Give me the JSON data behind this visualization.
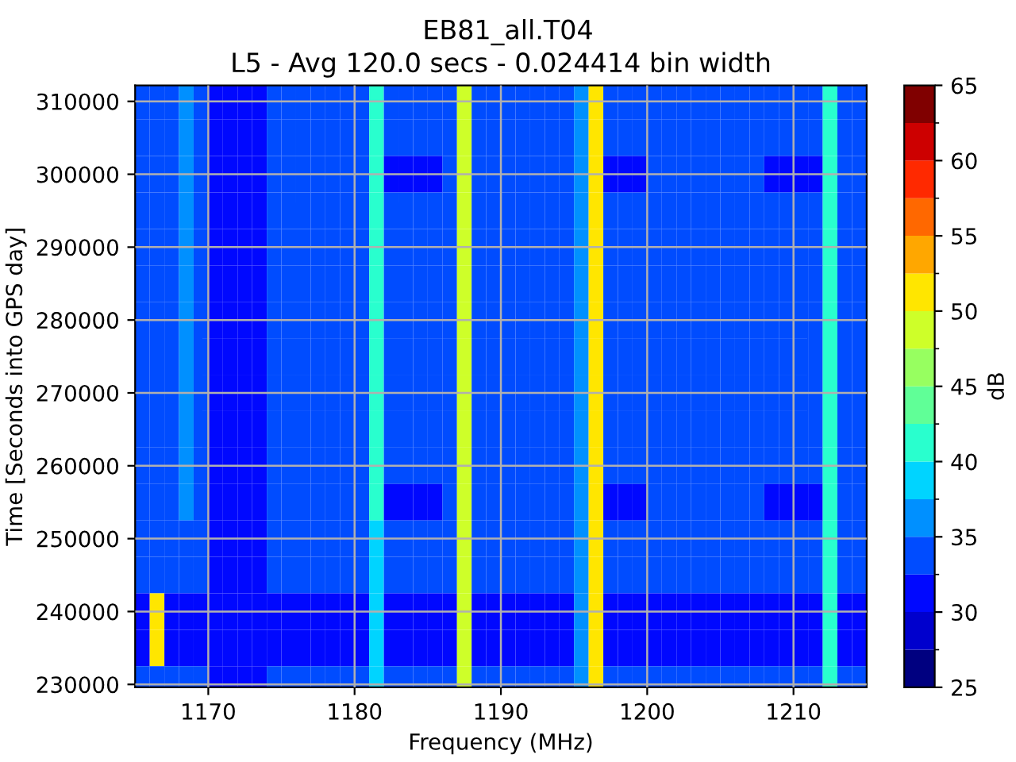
{
  "chart_data": {
    "type": "heatmap",
    "title": "EB81_all.T04",
    "subtitle": "L5 - Avg 120.0 secs - 0.024414 bin width",
    "xlabel": "Frequency (MHz)",
    "ylabel": "Time [Seconds into GPS day]",
    "clabel": "dB",
    "x": [
      1165.5,
      1166.5,
      1167.5,
      1168.5,
      1169.5,
      1170.5,
      1171.5,
      1172.5,
      1173.5,
      1174.5,
      1175.5,
      1176.5,
      1177.5,
      1178.5,
      1179.5,
      1180.5,
      1181.5,
      1182.5,
      1183.5,
      1184.5,
      1185.5,
      1186.5,
      1187.5,
      1188.5,
      1189.5,
      1190.5,
      1191.5,
      1192.5,
      1193.5,
      1194.5,
      1195.5,
      1196.5,
      1197.5,
      1198.5,
      1199.5,
      1200.5,
      1201.5,
      1202.5,
      1203.5,
      1204.5,
      1205.5,
      1206.5,
      1207.5,
      1208.5,
      1209.5,
      1210.5,
      1211.5,
      1212.5,
      1213.5,
      1214.5
    ],
    "y": [
      310000,
      305000,
      300000,
      295000,
      290000,
      285000,
      280000,
      275000,
      270000,
      265000,
      260000,
      255000,
      250000,
      245000,
      240000,
      235000,
      230000
    ],
    "cells": [
      [
        34,
        34,
        34,
        36,
        34,
        31,
        31,
        31,
        31,
        34,
        34,
        34,
        34,
        34,
        34,
        34,
        41,
        34,
        34,
        34,
        34,
        34,
        48,
        34,
        34,
        34,
        34,
        34,
        34,
        34,
        36,
        51,
        34,
        34,
        34,
        34,
        34,
        34,
        34,
        34,
        34,
        34,
        34,
        34,
        34,
        34,
        34,
        41,
        34,
        34
      ],
      [
        34,
        34,
        34,
        36,
        34,
        31,
        31,
        31,
        31,
        34,
        34,
        34,
        34,
        34,
        34,
        34,
        41,
        34,
        34,
        34,
        34,
        34,
        48,
        34,
        34,
        34,
        34,
        34,
        34,
        34,
        36,
        51,
        34,
        34,
        34,
        34,
        34,
        34,
        34,
        34,
        34,
        34,
        34,
        34,
        34,
        34,
        34,
        41,
        34,
        34
      ],
      [
        34,
        34,
        34,
        36,
        34,
        31,
        31,
        31,
        31,
        34,
        34,
        34,
        34,
        34,
        34,
        34,
        41,
        31,
        31,
        31,
        31,
        34,
        48,
        34,
        34,
        34,
        34,
        34,
        34,
        34,
        36,
        51,
        31,
        31,
        31,
        34,
        34,
        34,
        34,
        34,
        34,
        34,
        34,
        31,
        31,
        31,
        31,
        41,
        34,
        34
      ],
      [
        34,
        34,
        34,
        36,
        34,
        31,
        31,
        31,
        31,
        34,
        34,
        34,
        34,
        34,
        34,
        34,
        41,
        34,
        34,
        34,
        34,
        34,
        48,
        34,
        34,
        34,
        34,
        34,
        34,
        34,
        36,
        51,
        34,
        34,
        34,
        34,
        34,
        34,
        34,
        34,
        34,
        34,
        34,
        34,
        34,
        34,
        34,
        41,
        34,
        34
      ],
      [
        34,
        34,
        34,
        36,
        34,
        31,
        31,
        31,
        31,
        34,
        34,
        34,
        34,
        34,
        34,
        34,
        41,
        34,
        34,
        34,
        34,
        34,
        48,
        34,
        34,
        34,
        34,
        34,
        34,
        34,
        36,
        51,
        34,
        34,
        34,
        34,
        34,
        34,
        34,
        34,
        34,
        34,
        34,
        34,
        34,
        34,
        34,
        41,
        34,
        34
      ],
      [
        34,
        34,
        34,
        36,
        34,
        31,
        31,
        31,
        31,
        34,
        34,
        34,
        34,
        34,
        34,
        34,
        41,
        34,
        34,
        34,
        34,
        34,
        48,
        34,
        34,
        34,
        34,
        34,
        34,
        34,
        36,
        51,
        34,
        34,
        34,
        34,
        34,
        34,
        34,
        34,
        34,
        34,
        34,
        34,
        34,
        34,
        34,
        41,
        34,
        34
      ],
      [
        34,
        34,
        34,
        36,
        34,
        31,
        31,
        31,
        31,
        34,
        34,
        34,
        34,
        34,
        34,
        34,
        41,
        34,
        34,
        34,
        34,
        34,
        48,
        34,
        34,
        34,
        34,
        34,
        34,
        34,
        36,
        51,
        34,
        34,
        34,
        34,
        34,
        34,
        34,
        34,
        34,
        34,
        34,
        34,
        34,
        34,
        34,
        41,
        34,
        34
      ],
      [
        34,
        34,
        34,
        36,
        34,
        31,
        31,
        31,
        31,
        34,
        34,
        34,
        34,
        34,
        34,
        34,
        41,
        34,
        34,
        34,
        34,
        34,
        48,
        34,
        34,
        34,
        34,
        34,
        34,
        34,
        36,
        51,
        34,
        34,
        34,
        34,
        34,
        34,
        34,
        34,
        34,
        34,
        34,
        34,
        34,
        34,
        34,
        41,
        34,
        34
      ],
      [
        34,
        34,
        34,
        36,
        34,
        31,
        31,
        31,
        31,
        34,
        34,
        34,
        34,
        34,
        34,
        34,
        41,
        34,
        34,
        34,
        34,
        34,
        48,
        34,
        34,
        34,
        34,
        34,
        34,
        34,
        36,
        51,
        34,
        34,
        34,
        34,
        34,
        34,
        34,
        34,
        34,
        34,
        34,
        34,
        34,
        34,
        34,
        41,
        34,
        34
      ],
      [
        34,
        34,
        34,
        36,
        34,
        31,
        31,
        31,
        31,
        34,
        34,
        34,
        34,
        34,
        34,
        34,
        41,
        34,
        34,
        34,
        34,
        34,
        48,
        34,
        34,
        34,
        34,
        34,
        34,
        34,
        36,
        51,
        34,
        34,
        34,
        34,
        34,
        34,
        34,
        34,
        34,
        34,
        34,
        34,
        34,
        34,
        34,
        41,
        34,
        34
      ],
      [
        34,
        34,
        34,
        36,
        34,
        31,
        31,
        31,
        31,
        34,
        34,
        34,
        34,
        34,
        34,
        34,
        41,
        34,
        34,
        34,
        34,
        34,
        48,
        34,
        34,
        34,
        34,
        34,
        34,
        34,
        36,
        51,
        34,
        34,
        34,
        34,
        34,
        34,
        34,
        34,
        34,
        34,
        34,
        34,
        34,
        34,
        34,
        41,
        34,
        34
      ],
      [
        34,
        34,
        34,
        36,
        34,
        31,
        31,
        31,
        31,
        34,
        34,
        34,
        34,
        34,
        34,
        34,
        41,
        31,
        31,
        31,
        31,
        34,
        48,
        34,
        34,
        34,
        34,
        34,
        34,
        34,
        36,
        51,
        31,
        31,
        31,
        34,
        34,
        34,
        34,
        34,
        34,
        34,
        34,
        31,
        31,
        31,
        31,
        41,
        34,
        34
      ],
      [
        34,
        34,
        34,
        34,
        34,
        31,
        31,
        31,
        31,
        34,
        34,
        34,
        34,
        34,
        34,
        34,
        38,
        34,
        34,
        34,
        34,
        34,
        48,
        34,
        34,
        34,
        34,
        34,
        34,
        34,
        36,
        51,
        34,
        34,
        34,
        34,
        34,
        34,
        34,
        34,
        34,
        34,
        34,
        34,
        34,
        34,
        34,
        41,
        34,
        34
      ],
      [
        34,
        34,
        34,
        34,
        34,
        31,
        31,
        31,
        31,
        34,
        34,
        34,
        34,
        34,
        34,
        34,
        38,
        34,
        34,
        34,
        34,
        34,
        48,
        34,
        34,
        34,
        34,
        34,
        34,
        34,
        36,
        51,
        34,
        34,
        34,
        34,
        34,
        34,
        34,
        34,
        34,
        34,
        34,
        34,
        34,
        34,
        34,
        41,
        34,
        34
      ],
      [
        31,
        51,
        31,
        31,
        31,
        31,
        31,
        31,
        31,
        31,
        31,
        31,
        31,
        31,
        31,
        31,
        38,
        31,
        31,
        31,
        31,
        31,
        48,
        31,
        31,
        31,
        31,
        31,
        31,
        31,
        36,
        51,
        31,
        31,
        31,
        31,
        31,
        31,
        31,
        31,
        31,
        31,
        31,
        31,
        31,
        31,
        31,
        41,
        31,
        31
      ],
      [
        31,
        51,
        31,
        31,
        31,
        31,
        31,
        31,
        31,
        31,
        31,
        31,
        31,
        31,
        31,
        31,
        38,
        31,
        31,
        31,
        31,
        31,
        48,
        31,
        31,
        31,
        31,
        31,
        31,
        31,
        36,
        51,
        31,
        31,
        31,
        31,
        31,
        31,
        31,
        31,
        31,
        31,
        31,
        31,
        31,
        31,
        31,
        41,
        31,
        31
      ],
      [
        34,
        34,
        34,
        34,
        34,
        31,
        31,
        31,
        31,
        34,
        34,
        34,
        34,
        34,
        34,
        34,
        38,
        34,
        34,
        34,
        34,
        34,
        48,
        34,
        34,
        34,
        34,
        34,
        34,
        34,
        36,
        51,
        34,
        34,
        34,
        34,
        34,
        34,
        34,
        34,
        34,
        34,
        34,
        34,
        34,
        34,
        34,
        41,
        34,
        34
      ]
    ],
    "xlim": [
      1165,
      1215
    ],
    "xticks": [
      1170,
      1180,
      1190,
      1200,
      1210
    ],
    "ylim": [
      229600,
      312200
    ],
    "yticks": [
      230000,
      240000,
      250000,
      260000,
      270000,
      280000,
      290000,
      300000,
      310000
    ],
    "clim": [
      25,
      65
    ],
    "cticks": [
      25,
      30,
      35,
      40,
      45,
      50,
      55,
      60,
      65
    ],
    "grid": true
  }
}
